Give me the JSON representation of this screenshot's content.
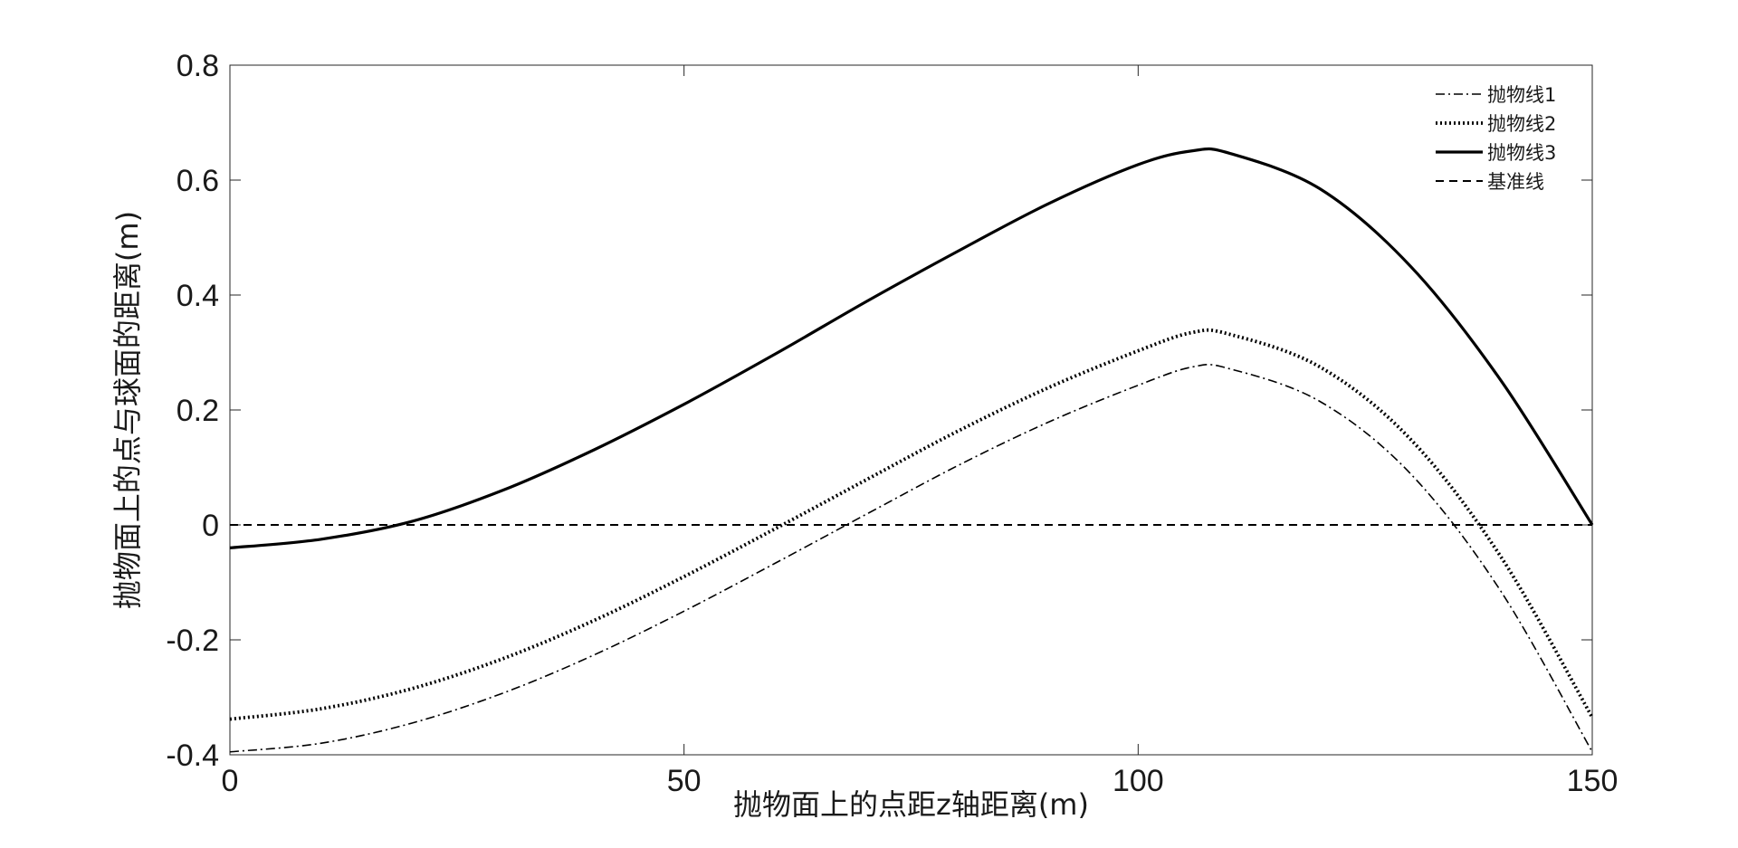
{
  "chart_data": {
    "type": "line",
    "title": "",
    "xlabel": "抛物面上的点距z轴距离(m)",
    "ylabel": "抛物面上的点与球面的距离(m)",
    "xlim": [
      0,
      150
    ],
    "ylim": [
      -0.4,
      0.8
    ],
    "xticks": [
      0,
      50,
      100,
      150
    ],
    "xtick_labels": [
      "0",
      "50",
      "100",
      "150"
    ],
    "yticks": [
      -0.4,
      -0.2,
      0,
      0.2,
      0.4,
      0.6,
      0.8
    ],
    "ytick_labels": [
      "-0.4",
      "-0.2",
      "0",
      "0.2",
      "0.4",
      "0.6",
      "0.8"
    ],
    "grid": false,
    "legend_position": "top-right",
    "x": [
      0,
      10,
      20,
      30,
      40,
      50,
      60,
      70,
      80,
      90,
      100,
      106,
      110,
      120,
      130,
      140,
      150
    ],
    "series": [
      {
        "name": "抛物线1",
        "style": "dash-dot",
        "color": "#000000",
        "values": [
          -0.395,
          -0.38,
          -0.345,
          -0.293,
          -0.227,
          -0.15,
          -0.067,
          0.018,
          0.102,
          0.178,
          0.243,
          0.275,
          0.272,
          0.215,
          0.089,
          -0.117,
          -0.395
        ]
      },
      {
        "name": "抛物线2",
        "style": "dotted",
        "color": "#000000",
        "values": [
          -0.338,
          -0.32,
          -0.285,
          -0.233,
          -0.167,
          -0.09,
          -0.007,
          0.078,
          0.162,
          0.238,
          0.303,
          0.335,
          0.332,
          0.275,
          0.149,
          -0.057,
          -0.335
        ]
      },
      {
        "name": "抛物线3",
        "style": "solid",
        "color": "#000000",
        "values": [
          -0.04,
          -0.025,
          0.006,
          0.06,
          0.13,
          0.21,
          0.297,
          0.388,
          0.475,
          0.558,
          0.627,
          0.651,
          0.647,
          0.585,
          0.45,
          0.25,
          0.0
        ]
      },
      {
        "name": "基准线",
        "style": "dashed",
        "color": "#000000",
        "values": [
          0,
          0,
          0,
          0,
          0,
          0,
          0,
          0,
          0,
          0,
          0,
          0,
          0,
          0,
          0,
          0,
          0
        ]
      }
    ]
  }
}
